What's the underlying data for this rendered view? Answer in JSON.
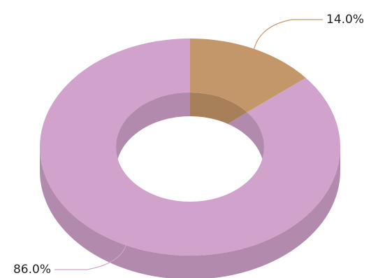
{
  "chart_data": {
    "type": "donut3d",
    "values": [
      14.0,
      86.0
    ],
    "value_labels": [
      "14.0%",
      "86.0%"
    ],
    "colors": [
      "#c4976a",
      "#d0a2cc"
    ]
  }
}
